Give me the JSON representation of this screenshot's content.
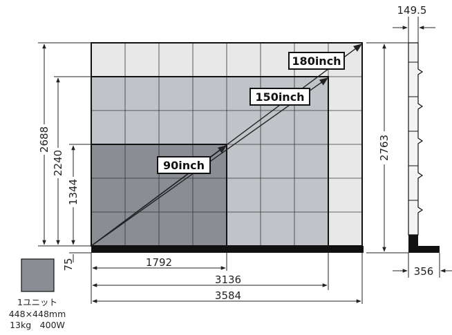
{
  "tiers": [
    {
      "label": "180inch",
      "cols": 8,
      "rows": 6,
      "color": "#e8e8e8"
    },
    {
      "label": "150inch",
      "cols": 7,
      "rows": 5,
      "color": "#c0c4c9"
    },
    {
      "label": "90inch",
      "cols": 4,
      "rows": 3,
      "color": "#8a8d94"
    }
  ],
  "dimensions": {
    "h_2688": "2688",
    "h_2240": "2240",
    "h_1344": "1344",
    "base_75": "75",
    "w_1792": "1792",
    "w_3136": "3136",
    "w_3584": "3584",
    "side_height": "2763",
    "side_top_depth": "149.5",
    "side_base_depth": "356"
  },
  "unit_info": {
    "name": "1ユニット",
    "size": "448×448mm",
    "spec": "13kg　400W"
  }
}
